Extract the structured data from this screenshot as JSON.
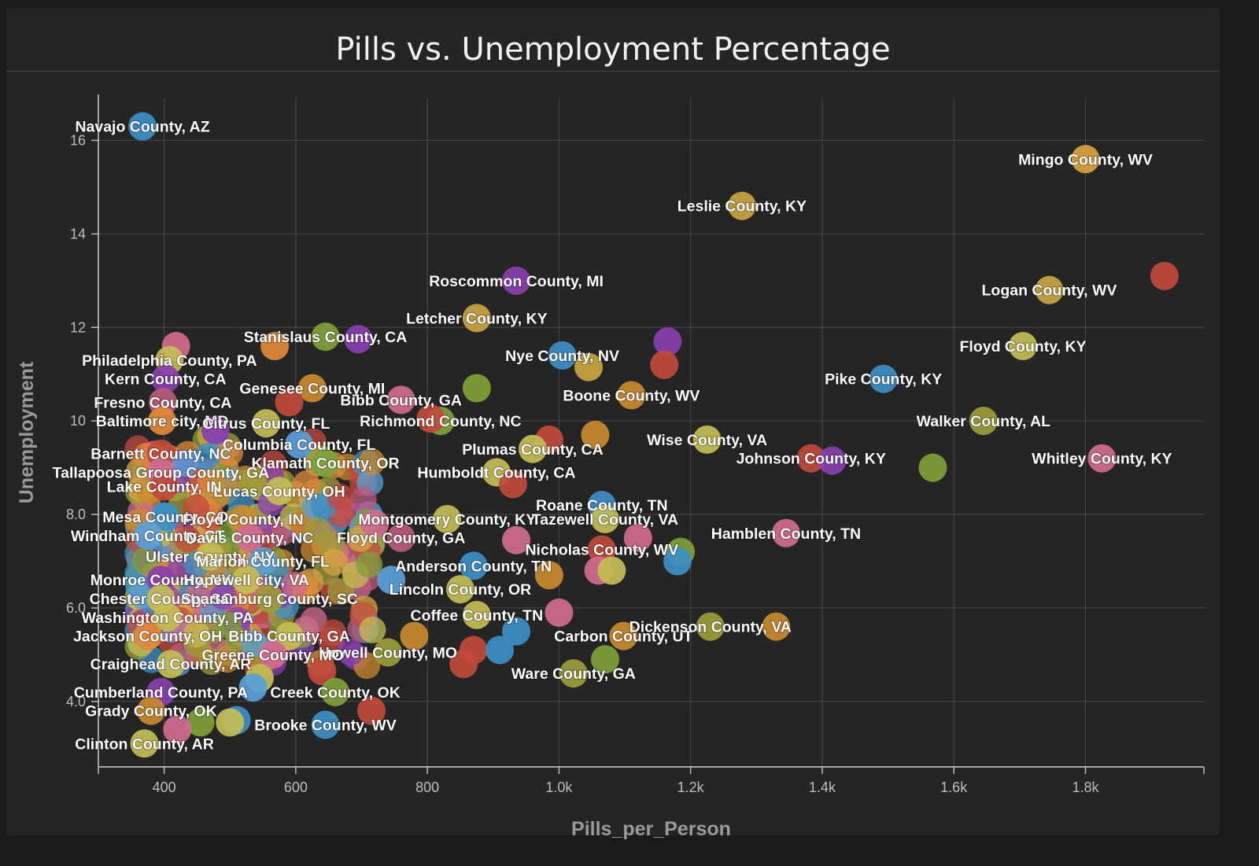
{
  "chart_data": {
    "type": "scatter",
    "title": "Pills vs. Unemployment Percentage",
    "xlabel": "Pills_per_Person",
    "ylabel": "Unemployment",
    "xlim": [
      300,
      1980
    ],
    "ylim": [
      2.6,
      16.9
    ],
    "x_ticks": [
      {
        "value": 400,
        "label": "400"
      },
      {
        "value": 600,
        "label": "600"
      },
      {
        "value": 800,
        "label": "800"
      },
      {
        "value": 1000,
        "label": "1.0k"
      },
      {
        "value": 1200,
        "label": "1.2k"
      },
      {
        "value": 1400,
        "label": "1.4k"
      },
      {
        "value": 1600,
        "label": "1.6k"
      },
      {
        "value": 1800,
        "label": "1.8k"
      }
    ],
    "y_ticks": [
      {
        "value": 4,
        "label": "4.0"
      },
      {
        "value": 6,
        "label": "6.0"
      },
      {
        "value": 8,
        "label": "8.0"
      },
      {
        "value": 10,
        "label": "10"
      },
      {
        "value": 12,
        "label": "12"
      },
      {
        "value": 14,
        "label": "14"
      },
      {
        "value": 16,
        "label": "16"
      }
    ],
    "grid": true,
    "legend": "none",
    "palette": [
      "#3d8fc6",
      "#d9a441",
      "#c14a3c",
      "#8a3fb0",
      "#7fa23a",
      "#d06b8f",
      "#c4bd55",
      "#c98a2e",
      "#5aa0d8",
      "#9c9c3a",
      "#b85a7c",
      "#e08a3a"
    ],
    "points": [
      {
        "x": 367,
        "y": 16.3,
        "label": "Navajo County, AZ",
        "color": "#3d8fc6"
      },
      {
        "x": 1800,
        "y": 15.6,
        "label": "Mingo County, WV",
        "color": "#d9a441"
      },
      {
        "x": 1278,
        "y": 14.6,
        "label": "Leslie County, KY",
        "color": "#c9a441"
      },
      {
        "x": 1920,
        "y": 13.1,
        "label": "",
        "color": "#c14a3c"
      },
      {
        "x": 935,
        "y": 13.0,
        "label": "Roscommon County, MI",
        "color": "#8a3fb0"
      },
      {
        "x": 1745,
        "y": 12.8,
        "label": "Logan County, WV",
        "color": "#c9a441"
      },
      {
        "x": 875,
        "y": 12.2,
        "label": "Letcher County, KY",
        "color": "#c9a441"
      },
      {
        "x": 645,
        "y": 11.8,
        "label": "Stanislaus County, CA",
        "color": "#7fa23a"
      },
      {
        "x": 695,
        "y": 11.75,
        "label": "",
        "color": "#8a3fb0"
      },
      {
        "x": 1165,
        "y": 11.7,
        "label": "",
        "color": "#8a3fb0"
      },
      {
        "x": 1705,
        "y": 11.6,
        "label": "Floyd County, KY",
        "color": "#c4bd55"
      },
      {
        "x": 568,
        "y": 11.6,
        "label": "",
        "color": "#e08a3a"
      },
      {
        "x": 418,
        "y": 11.6,
        "label": "",
        "color": "#d06b8f"
      },
      {
        "x": 1005,
        "y": 11.4,
        "label": "Nye County, NV",
        "color": "#3d8fc6"
      },
      {
        "x": 408,
        "y": 11.3,
        "label": "Philadelphia County, PA",
        "color": "#c4bd55"
      },
      {
        "x": 1160,
        "y": 11.2,
        "label": "",
        "color": "#c14a3c"
      },
      {
        "x": 1045,
        "y": 11.15,
        "label": "",
        "color": "#c9a441"
      },
      {
        "x": 402,
        "y": 10.9,
        "label": "Kern County, CA",
        "color": "#8a3fb0"
      },
      {
        "x": 1493,
        "y": 10.9,
        "label": "Pike County, KY",
        "color": "#3d8fc6"
      },
      {
        "x": 625,
        "y": 10.7,
        "label": "Genesee County, MI",
        "color": "#c98a2e"
      },
      {
        "x": 875,
        "y": 10.7,
        "label": "",
        "color": "#7fa23a"
      },
      {
        "x": 1110,
        "y": 10.55,
        "label": "Boone County, WV",
        "color": "#c98a2e"
      },
      {
        "x": 398,
        "y": 10.4,
        "label": "Fresno County, CA",
        "color": "#b85a7c"
      },
      {
        "x": 760,
        "y": 10.45,
        "label": "Bibb County, GA",
        "color": "#d06b8f"
      },
      {
        "x": 590,
        "y": 10.4,
        "label": "",
        "color": "#c14a3c"
      },
      {
        "x": 1645,
        "y": 10.0,
        "label": "Walker County, AL",
        "color": "#9c9c3a"
      },
      {
        "x": 820,
        "y": 10.0,
        "label": "Richmond County, NC",
        "color": "#7fa23a"
      },
      {
        "x": 805,
        "y": 10.05,
        "label": "",
        "color": "#c14a3c"
      },
      {
        "x": 397,
        "y": 10.0,
        "label": "Baltimore city, MD",
        "color": "#e08a3a"
      },
      {
        "x": 555,
        "y": 9.95,
        "label": "Citrus County, FL",
        "color": "#c4bd55"
      },
      {
        "x": 478,
        "y": 9.8,
        "label": "",
        "color": "#8a3fb0"
      },
      {
        "x": 1055,
        "y": 9.7,
        "label": "",
        "color": "#c98a2e"
      },
      {
        "x": 1225,
        "y": 9.6,
        "label": "Wise County, VA",
        "color": "#c4bd55"
      },
      {
        "x": 985,
        "y": 9.6,
        "label": "",
        "color": "#c14a3c"
      },
      {
        "x": 605,
        "y": 9.5,
        "label": "Columbia County, FL",
        "color": "#5aa0d8"
      },
      {
        "x": 960,
        "y": 9.4,
        "label": "Plumas County, CA",
        "color": "#c4bd55"
      },
      {
        "x": 395,
        "y": 9.3,
        "label": "Barnett County, NC",
        "color": "#c14a3c"
      },
      {
        "x": 1383,
        "y": 9.2,
        "label": "Johnson County, KY",
        "color": "#c14a3c"
      },
      {
        "x": 1415,
        "y": 9.15,
        "label": "",
        "color": "#8a3fb0"
      },
      {
        "x": 1825,
        "y": 9.2,
        "label": "Whitley County, KY",
        "color": "#d06b8f"
      },
      {
        "x": 645,
        "y": 9.1,
        "label": "Klamath County, OR",
        "color": "#7fa23a"
      },
      {
        "x": 395,
        "y": 8.9,
        "label": "Tallapoosa Group County, GA",
        "color": "#d06b8f"
      },
      {
        "x": 905,
        "y": 8.9,
        "label": "Humboldt County, CA",
        "color": "#c4bd55"
      },
      {
        "x": 1568,
        "y": 9.0,
        "label": "",
        "color": "#7fa23a"
      },
      {
        "x": 930,
        "y": 8.65,
        "label": "",
        "color": "#c14a3c"
      },
      {
        "x": 535,
        "y": 8.7,
        "label": "",
        "color": "#9c9c3a"
      },
      {
        "x": 400,
        "y": 8.6,
        "label": "Lake County, IN",
        "color": "#c14a3c"
      },
      {
        "x": 575,
        "y": 8.5,
        "label": "Lucas County, OH",
        "color": "#c4bd55"
      },
      {
        "x": 1065,
        "y": 8.2,
        "label": "Roane County, TN",
        "color": "#3d8fc6"
      },
      {
        "x": 402,
        "y": 7.95,
        "label": "Mesa County, CO",
        "color": "#3d8fc6"
      },
      {
        "x": 520,
        "y": 7.9,
        "label": "Floyd County, IN",
        "color": "#c98a2e"
      },
      {
        "x": 830,
        "y": 7.9,
        "label": "Montgomery County, KY",
        "color": "#c4bd55"
      },
      {
        "x": 1070,
        "y": 7.9,
        "label": "Tazewell County, VA",
        "color": "#c4bd55"
      },
      {
        "x": 720,
        "y": 7.8,
        "label": "",
        "color": "#d06b8f"
      },
      {
        "x": 375,
        "y": 7.55,
        "label": "Windham County, CT",
        "color": "#5aa0d8"
      },
      {
        "x": 530,
        "y": 7.5,
        "label": "Davis County, NC",
        "color": "#d06b8f"
      },
      {
        "x": 760,
        "y": 7.5,
        "label": "Floyd County, GA",
        "color": "#b85a7c"
      },
      {
        "x": 1345,
        "y": 7.6,
        "label": "Hamblen County, TN",
        "color": "#d06b8f"
      },
      {
        "x": 935,
        "y": 7.45,
        "label": "",
        "color": "#d06b8f"
      },
      {
        "x": 1120,
        "y": 7.5,
        "label": "",
        "color": "#d06b8f"
      },
      {
        "x": 470,
        "y": 7.1,
        "label": "Ulster County, NY",
        "color": "#c4bd55"
      },
      {
        "x": 1065,
        "y": 7.25,
        "label": "Nicholas County, WV",
        "color": "#c14a3c"
      },
      {
        "x": 1185,
        "y": 7.2,
        "label": "",
        "color": "#7fa23a"
      },
      {
        "x": 1180,
        "y": 7.0,
        "label": "",
        "color": "#3d8fc6"
      },
      {
        "x": 550,
        "y": 7.0,
        "label": "Marion County, FL",
        "color": "#5aa0d8"
      },
      {
        "x": 870,
        "y": 6.9,
        "label": "Anderson County, TN",
        "color": "#3d8fc6"
      },
      {
        "x": 985,
        "y": 6.7,
        "label": "",
        "color": "#c98a2e"
      },
      {
        "x": 1060,
        "y": 6.8,
        "label": "",
        "color": "#d06b8f"
      },
      {
        "x": 1080,
        "y": 6.8,
        "label": "",
        "color": "#c4bd55"
      },
      {
        "x": 395,
        "y": 6.6,
        "label": "Monroe County, NY",
        "color": "#8a3fb0"
      },
      {
        "x": 525,
        "y": 6.6,
        "label": "Hopewell city, VA",
        "color": "#c4bd55"
      },
      {
        "x": 745,
        "y": 6.6,
        "label": "",
        "color": "#5aa0d8"
      },
      {
        "x": 850,
        "y": 6.4,
        "label": "Lincoln County, OR",
        "color": "#c4bd55"
      },
      {
        "x": 395,
        "y": 6.2,
        "label": "Chester County, SC",
        "color": "#c4bd55"
      },
      {
        "x": 560,
        "y": 6.2,
        "label": "Spartanburg County, SC",
        "color": "#9c9c3a"
      },
      {
        "x": 1000,
        "y": 5.9,
        "label": "",
        "color": "#d06b8f"
      },
      {
        "x": 875,
        "y": 5.85,
        "label": "Coffee County, TN",
        "color": "#c4bd55"
      },
      {
        "x": 405,
        "y": 5.8,
        "label": "Washington County, PA",
        "color": "#c4bd55"
      },
      {
        "x": 935,
        "y": 5.5,
        "label": "",
        "color": "#3d8fc6"
      },
      {
        "x": 1098,
        "y": 5.4,
        "label": "Carbon County, UT",
        "color": "#c98a2e"
      },
      {
        "x": 1230,
        "y": 5.6,
        "label": "Dickenson County, VA",
        "color": "#9c9c3a"
      },
      {
        "x": 1330,
        "y": 5.6,
        "label": "",
        "color": "#c98a2e"
      },
      {
        "x": 375,
        "y": 5.4,
        "label": "Jackson County, OH",
        "color": "#e08a3a"
      },
      {
        "x": 590,
        "y": 5.4,
        "label": "Bibb County, GA",
        "color": "#c4bd55"
      },
      {
        "x": 780,
        "y": 5.4,
        "label": "",
        "color": "#c98a2e"
      },
      {
        "x": 740,
        "y": 5.05,
        "label": "Howell County, MO",
        "color": "#9c9c3a"
      },
      {
        "x": 870,
        "y": 5.1,
        "label": "",
        "color": "#c14a3c"
      },
      {
        "x": 910,
        "y": 5.1,
        "label": "",
        "color": "#3d8fc6"
      },
      {
        "x": 565,
        "y": 5.0,
        "label": "Greene County, MO",
        "color": "#d06b8f"
      },
      {
        "x": 1070,
        "y": 4.9,
        "label": "",
        "color": "#7fa23a"
      },
      {
        "x": 855,
        "y": 4.8,
        "label": "",
        "color": "#c14a3c"
      },
      {
        "x": 410,
        "y": 4.8,
        "label": "Craighead County, AR",
        "color": "#c4bd55"
      },
      {
        "x": 1022,
        "y": 4.6,
        "label": "Ware County, GA",
        "color": "#9c9c3a"
      },
      {
        "x": 640,
        "y": 4.65,
        "label": "",
        "color": "#c14a3c"
      },
      {
        "x": 545,
        "y": 4.5,
        "label": "",
        "color": "#c4bd55"
      },
      {
        "x": 660,
        "y": 4.2,
        "label": "Creek County, OK",
        "color": "#7fa23a"
      },
      {
        "x": 535,
        "y": 4.3,
        "label": "",
        "color": "#5aa0d8"
      },
      {
        "x": 395,
        "y": 4.2,
        "label": "Cumberland County, PA",
        "color": "#8a3fb0"
      },
      {
        "x": 715,
        "y": 3.8,
        "label": "",
        "color": "#c14a3c"
      },
      {
        "x": 380,
        "y": 3.8,
        "label": "Grady County, OK",
        "color": "#c98a2e"
      },
      {
        "x": 510,
        "y": 3.6,
        "label": "",
        "color": "#3d8fc6"
      },
      {
        "x": 645,
        "y": 3.5,
        "label": "Brooke County, WV",
        "color": "#3d8fc6"
      },
      {
        "x": 455,
        "y": 3.55,
        "label": "",
        "color": "#7fa23a"
      },
      {
        "x": 500,
        "y": 3.55,
        "label": "",
        "color": "#c4bd55"
      },
      {
        "x": 370,
        "y": 3.1,
        "label": "Clinton County, AR",
        "color": "#c4bd55"
      },
      {
        "x": 420,
        "y": 3.4,
        "label": "",
        "color": "#d06b8f"
      }
    ],
    "background_cluster": {
      "x_range": [
        360,
        720
      ],
      "y_range": [
        4.2,
        10.3
      ],
      "count": 340
    }
  }
}
